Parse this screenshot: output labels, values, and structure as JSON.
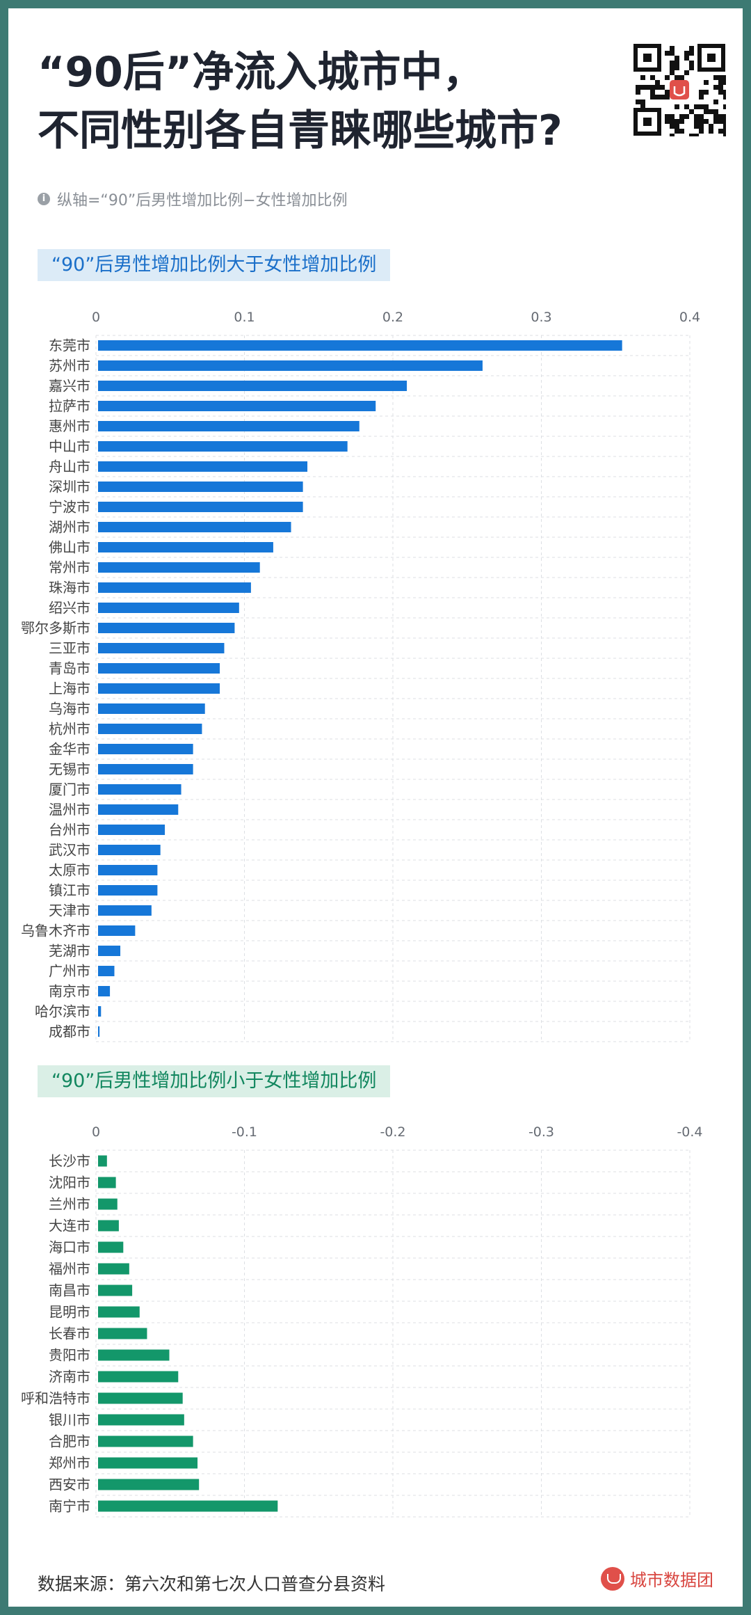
{
  "header": {
    "title": "“90后”净流入城市中，\n不同性别各自青睐哪些城市?",
    "subtitle": "纵轴=“90”后男性增加比例−女性增加比例"
  },
  "colors": {
    "blue": "#1677d8",
    "green": "#13976a",
    "grid": "#dcdfe3"
  },
  "footer": {
    "source": "数据来源：第六次和第七次人口普查分县资料",
    "brand": "城市数据团"
  },
  "chart_data": [
    {
      "type": "bar",
      "orientation": "horizontal",
      "title": "“90”后男性增加比例大于女性增加比例",
      "xlim": [
        0,
        0.4
      ],
      "xticks": [
        "0",
        "0.1",
        "0.2",
        "0.3",
        "0.4"
      ],
      "grid": true,
      "categories": [
        "东莞市",
        "苏州市",
        "嘉兴市",
        "拉萨市",
        "惠州市",
        "中山市",
        "舟山市",
        "深圳市",
        "宁波市",
        "湖州市",
        "佛山市",
        "常州市",
        "珠海市",
        "绍兴市",
        "鄂尔多斯市",
        "三亚市",
        "青岛市",
        "上海市",
        "乌海市",
        "杭州市",
        "金华市",
        "无锡市",
        "厦门市",
        "温州市",
        "台州市",
        "武汉市",
        "太原市",
        "镇江市",
        "天津市",
        "乌鲁木齐市",
        "芜湖市",
        "广州市",
        "南京市",
        "哈尔滨市",
        "成都市"
      ],
      "values": [
        0.353,
        0.259,
        0.208,
        0.187,
        0.176,
        0.168,
        0.141,
        0.138,
        0.138,
        0.13,
        0.118,
        0.109,
        0.103,
        0.095,
        0.092,
        0.085,
        0.082,
        0.082,
        0.072,
        0.07,
        0.064,
        0.064,
        0.056,
        0.054,
        0.045,
        0.042,
        0.04,
        0.04,
        0.036,
        0.025,
        0.015,
        0.011,
        0.008,
        0.002,
        0.001
      ]
    },
    {
      "type": "bar",
      "orientation": "horizontal",
      "title": "“90”后男性增加比例小于女性增加比例",
      "xlim": [
        0,
        -0.4
      ],
      "xticks": [
        "0",
        "-0.1",
        "-0.2",
        "-0.3",
        "-0.4"
      ],
      "grid": true,
      "categories": [
        "长沙市",
        "沈阳市",
        "兰州市",
        "大连市",
        "海口市",
        "福州市",
        "南昌市",
        "昆明市",
        "长春市",
        "贵阳市",
        "济南市",
        "呼和浩特市",
        "银川市",
        "合肥市",
        "郑州市",
        "西安市",
        "南宁市"
      ],
      "values": [
        -0.006,
        -0.012,
        -0.013,
        -0.014,
        -0.017,
        -0.021,
        -0.023,
        -0.028,
        -0.033,
        -0.048,
        -0.054,
        -0.057,
        -0.058,
        -0.064,
        -0.067,
        -0.068,
        -0.121
      ]
    }
  ]
}
